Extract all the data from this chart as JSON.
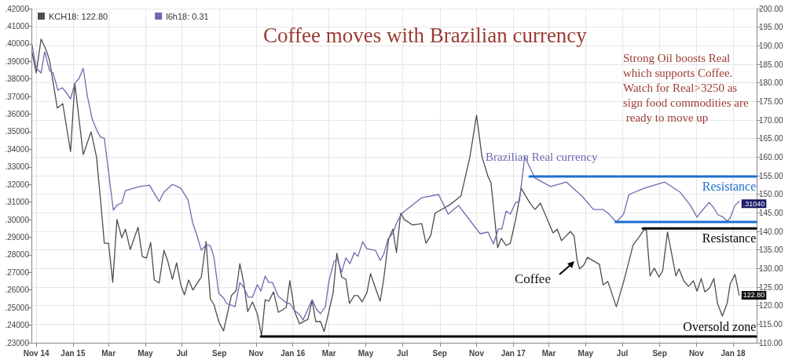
{
  "chart_data": {
    "type": "line",
    "title": "Coffee moves with Brazilian currency",
    "annotations": [
      "Strong Oil boosts Real which supports Coffee. Watch for Real>3250 as sign food commodities are ready to move up",
      "Brazilian Real currency",
      "Coffee"
    ],
    "xlim": [
      "2014-10-24",
      "2018-02-09"
    ],
    "xticks": [
      {
        "value": "2014-11-01",
        "label": "Nov 14"
      },
      {
        "value": "2015-01-01",
        "label": "Jan 15"
      },
      {
        "value": "2015-03-01",
        "label": "Mar"
      },
      {
        "value": "2015-05-01",
        "label": "May"
      },
      {
        "value": "2015-07-01",
        "label": "Jul"
      },
      {
        "value": "2015-09-01",
        "label": "Sep"
      },
      {
        "value": "2015-11-01",
        "label": "Nov"
      },
      {
        "value": "2016-01-01",
        "label": "Jan 16"
      },
      {
        "value": "2016-03-01",
        "label": "Mar"
      },
      {
        "value": "2016-05-01",
        "label": "May"
      },
      {
        "value": "2016-07-01",
        "label": "Jul"
      },
      {
        "value": "2016-09-01",
        "label": "Sep"
      },
      {
        "value": "2016-11-01",
        "label": "Nov"
      },
      {
        "value": "2017-01-01",
        "label": "Jan 17"
      },
      {
        "value": "2017-03-01",
        "label": "Mar"
      },
      {
        "value": "2017-05-01",
        "label": "May"
      },
      {
        "value": "2017-07-01",
        "label": "Jul"
      },
      {
        "value": "2017-09-01",
        "label": "Sep"
      },
      {
        "value": "2017-11-01",
        "label": "Nov"
      },
      {
        "value": "2018-01-01",
        "label": "Jan 18"
      }
    ],
    "ylim": [
      0.23,
      0.42
    ],
    "yticks": [
      {
        "value": 0.23,
        "label": ".23000"
      },
      {
        "value": 0.24,
        "label": ".24000"
      },
      {
        "value": 0.25,
        "label": ".25000"
      },
      {
        "value": 0.26,
        "label": ".26000"
      },
      {
        "value": 0.27,
        "label": ".27000"
      },
      {
        "value": 0.28,
        "label": ".28000"
      },
      {
        "value": 0.29,
        "label": ".29000"
      },
      {
        "value": 0.3,
        "label": ".30000"
      },
      {
        "value": 0.31,
        "label": ".31000"
      },
      {
        "value": 0.32,
        "label": ".32000"
      },
      {
        "value": 0.33,
        "label": ".33000"
      },
      {
        "value": 0.34,
        "label": ".34000"
      },
      {
        "value": 0.35,
        "label": ".35000"
      },
      {
        "value": 0.36,
        "label": ".36000"
      },
      {
        "value": 0.37,
        "label": ".37000"
      },
      {
        "value": 0.38,
        "label": ".38000"
      },
      {
        "value": 0.39,
        "label": ".39000"
      },
      {
        "value": 0.4,
        "label": ".40000"
      },
      {
        "value": 0.41,
        "label": ".41000"
      },
      {
        "value": 0.42,
        "label": ".42000"
      }
    ],
    "y2lim": [
      110,
      200
    ],
    "y2ticks": [
      {
        "value": 110,
        "label": "110.00"
      },
      {
        "value": 115,
        "label": "115.00"
      },
      {
        "value": 120,
        "label": "120.00"
      },
      {
        "value": 125,
        "label": "125.00"
      },
      {
        "value": 130,
        "label": "130.00"
      },
      {
        "value": 135,
        "label": "135.00"
      },
      {
        "value": 140,
        "label": "140.00"
      },
      {
        "value": 145,
        "label": "145.00"
      },
      {
        "value": 150,
        "label": "150.00"
      },
      {
        "value": 155,
        "label": "155.00"
      },
      {
        "value": 160,
        "label": "160.00"
      },
      {
        "value": 165,
        "label": "165.00"
      },
      {
        "value": 170,
        "label": "170.00"
      },
      {
        "value": 175,
        "label": "175.00"
      },
      {
        "value": 180,
        "label": "180.00"
      },
      {
        "value": 185,
        "label": "185.00"
      },
      {
        "value": 190,
        "label": "190.00"
      },
      {
        "value": 195,
        "label": "195.00"
      },
      {
        "value": 200,
        "label": "200.00"
      }
    ],
    "grid": true,
    "legend": "top left",
    "marker": "none",
    "series": [
      {
        "name": "KCH18: 122.80",
        "color": "#4d4d4d",
        "axis": "y2",
        "x": [
          "2014-10-25",
          "2014-11-01",
          "2014-11-09",
          "2014-11-17",
          "2014-11-23",
          "2014-12-06",
          "2014-12-15",
          "2014-12-28",
          "2015-01-04",
          "2015-01-18",
          "2015-01-31",
          "2015-02-09",
          "2015-02-16",
          "2015-02-22",
          "2015-03-01",
          "2015-03-08",
          "2015-03-15",
          "2015-03-23",
          "2015-03-29",
          "2015-04-06",
          "2015-04-19",
          "2015-04-26",
          "2015-05-03",
          "2015-05-10",
          "2015-05-16",
          "2015-05-24",
          "2015-06-01",
          "2015-06-07",
          "2015-06-15",
          "2015-06-22",
          "2015-06-29",
          "2015-07-05",
          "2015-07-12",
          "2015-07-19",
          "2015-08-02",
          "2015-08-10",
          "2015-08-17",
          "2015-08-23",
          "2015-08-31",
          "2015-09-08",
          "2015-09-21",
          "2015-09-29",
          "2015-10-05",
          "2015-10-12",
          "2015-10-18",
          "2015-10-26",
          "2015-11-03",
          "2015-11-10",
          "2015-11-16",
          "2015-11-22",
          "2015-11-30",
          "2015-12-08",
          "2015-12-21",
          "2015-12-27",
          "2016-01-04",
          "2016-01-12",
          "2016-01-26",
          "2016-02-02",
          "2016-02-08",
          "2016-02-16",
          "2016-02-22",
          "2016-03-08",
          "2016-03-14",
          "2016-03-22",
          "2016-03-29",
          "2016-04-04",
          "2016-04-12",
          "2016-04-18",
          "2016-04-25",
          "2016-05-03",
          "2016-05-09",
          "2016-05-17",
          "2016-05-25",
          "2016-05-31",
          "2016-06-08",
          "2016-06-15",
          "2016-06-21",
          "2016-06-28",
          "2016-07-04",
          "2016-07-18",
          "2016-08-02",
          "2016-08-09",
          "2016-08-17",
          "2016-08-24",
          "2016-09-16",
          "2016-10-06",
          "2016-10-21",
          "2016-11-01",
          "2016-11-10",
          "2016-11-20",
          "2016-11-25",
          "2016-12-06",
          "2016-12-12",
          "2016-12-20",
          "2016-12-27",
          "2017-01-05",
          "2017-01-14",
          "2017-01-28",
          "2017-02-06",
          "2017-02-15",
          "2017-03-04",
          "2017-03-08",
          "2017-03-15",
          "2017-03-22",
          "2017-04-06",
          "2017-04-12",
          "2017-04-17",
          "2017-04-21",
          "2017-04-28",
          "2017-05-04",
          "2017-05-24",
          "2017-05-30",
          "2017-06-07",
          "2017-06-21",
          "2017-07-03",
          "2017-07-19",
          "2017-07-28",
          "2017-08-06",
          "2017-08-10",
          "2017-08-16",
          "2017-08-23",
          "2017-08-31",
          "2017-09-06",
          "2017-09-14",
          "2017-09-28",
          "2017-10-03",
          "2017-10-11",
          "2017-10-19",
          "2017-10-27",
          "2017-11-02",
          "2017-11-09",
          "2017-11-15",
          "2017-11-23",
          "2017-11-30",
          "2017-12-06",
          "2017-12-14",
          "2017-12-22",
          "2017-12-27",
          "2018-01-04",
          "2018-01-11"
        ],
        "values": [
          188.2,
          182.7,
          191.8,
          189.0,
          186.1,
          173.2,
          174.4,
          161.5,
          179.9,
          160.7,
          166.8,
          160.1,
          148.0,
          136.8,
          136.8,
          126.3,
          143.2,
          138.3,
          140.6,
          135.1,
          141.1,
          133.2,
          132.8,
          137.0,
          126.9,
          126.1,
          134.9,
          132.2,
          127.1,
          131.5,
          125.6,
          122.9,
          126.9,
          124.2,
          127.7,
          137.3,
          121.8,
          120.3,
          115.7,
          113.2,
          122.7,
          124.1,
          131.3,
          125.6,
          118.4,
          121.0,
          117.8,
          111.9,
          121.6,
          121.2,
          123.7,
          118.2,
          119.5,
          126.7,
          118.4,
          115.1,
          116.3,
          121.4,
          115.7,
          115.7,
          113.0,
          123.5,
          134.1,
          127.7,
          127.1,
          120.6,
          122.7,
          122.7,
          121.0,
          123.5,
          128.6,
          124.8,
          121.2,
          127.3,
          137.9,
          140.6,
          134.3,
          144.9,
          143.2,
          141.7,
          142.1,
          136.8,
          138.9,
          144.9,
          147.0,
          149.5,
          160.1,
          171.3,
          160.1,
          154.8,
          153.1,
          135.6,
          138.1,
          136.2,
          136.8,
          143.2,
          151.6,
          147.8,
          145.9,
          147.6,
          141.1,
          139.6,
          140.6,
          137.5,
          140.0,
          138.7,
          132.2,
          129.9,
          130.9,
          133.0,
          131.1,
          125.6,
          126.5,
          119.7,
          126.3,
          136.4,
          138.3,
          140.4,
          140.4,
          128.0,
          130.1,
          127.7,
          129.4,
          139.8,
          128.0,
          129.9,
          126.7,
          125.2,
          126.7,
          123.9,
          127.3,
          123.7,
          124.8,
          127.3,
          120.6,
          117.2,
          120.6,
          125.8,
          128.4,
          122.8
        ],
        "value_labels": [
          null,
          null,
          null,
          null,
          null,
          null,
          null,
          null,
          null,
          null,
          null,
          null,
          null,
          null,
          null,
          null,
          null,
          null,
          null,
          null,
          null,
          null,
          null,
          null,
          null,
          null,
          null,
          null,
          null,
          null,
          null,
          null,
          null,
          null,
          null,
          null,
          null,
          null,
          null,
          null,
          null,
          null,
          null,
          null,
          null,
          null,
          null,
          null,
          null,
          null,
          null,
          null,
          null,
          null,
          null,
          null,
          null,
          null,
          null,
          null,
          null,
          null,
          null,
          null,
          null,
          null,
          null,
          null,
          null,
          null,
          null,
          null,
          null,
          null,
          null,
          null,
          null,
          null,
          null,
          null,
          null,
          null,
          null,
          null,
          null,
          null,
          null,
          null,
          null,
          null,
          null,
          null,
          null,
          null,
          null,
          null,
          null,
          null,
          null,
          null,
          null,
          null,
          null,
          null,
          null,
          null,
          null,
          null,
          null,
          null,
          null,
          null,
          null,
          null,
          null,
          null,
          null,
          null,
          null,
          null,
          null,
          null,
          null,
          null,
          null,
          null,
          null,
          null,
          null,
          null,
          null,
          null,
          null,
          null,
          null,
          null,
          null,
          null,
          null,
          "122.80"
        ]
      },
      {
        "name": "l6h18: 0.31",
        "color": "#6b6bb0",
        "axis": "y",
        "x": [
          "2014-10-25",
          "2014-11-01",
          "2014-11-09",
          "2014-11-15",
          "2014-11-23",
          "2014-11-29",
          "2014-12-07",
          "2014-12-14",
          "2014-12-20",
          "2014-12-28",
          "2015-01-04",
          "2015-01-11",
          "2015-01-18",
          "2015-01-25",
          "2015-02-02",
          "2015-02-10",
          "2015-02-16",
          "2015-02-22",
          "2015-03-09",
          "2015-03-16",
          "2015-03-23",
          "2015-03-29",
          "2015-04-21",
          "2015-05-08",
          "2015-05-24",
          "2015-06-01",
          "2015-06-15",
          "2015-06-29",
          "2015-07-11",
          "2015-07-19",
          "2015-07-25",
          "2015-08-02",
          "2015-08-10",
          "2015-08-17",
          "2015-08-23",
          "2015-08-31",
          "2015-09-08",
          "2015-09-13",
          "2015-09-21",
          "2015-09-27",
          "2015-10-05",
          "2015-10-12",
          "2015-10-19",
          "2015-10-26",
          "2015-11-03",
          "2015-11-09",
          "2015-11-16",
          "2015-11-22",
          "2015-11-28",
          "2015-12-08",
          "2015-12-21",
          "2015-12-27",
          "2016-01-04",
          "2016-01-12",
          "2016-01-18",
          "2016-02-02",
          "2016-02-09",
          "2016-02-16",
          "2016-02-24",
          "2016-03-01",
          "2016-03-09",
          "2016-03-15",
          "2016-03-22",
          "2016-03-29",
          "2016-04-05",
          "2016-04-12",
          "2016-04-18",
          "2016-04-26",
          "2016-05-03",
          "2016-05-17",
          "2016-05-25",
          "2016-05-31",
          "2016-06-07",
          "2016-06-15",
          "2016-06-21",
          "2016-06-30",
          "2016-08-02",
          "2016-08-30",
          "2016-09-15",
          "2016-10-02",
          "2016-10-25",
          "2016-11-07",
          "2016-11-20",
          "2016-11-29",
          "2016-12-07",
          "2016-12-13",
          "2016-12-20",
          "2016-12-27",
          "2017-01-05",
          "2017-01-11",
          "2017-01-20",
          "2017-02-06",
          "2017-03-04",
          "2017-03-30",
          "2017-04-25",
          "2017-05-14",
          "2017-05-30",
          "2017-06-09",
          "2017-06-21",
          "2017-07-03",
          "2017-07-12",
          "2017-08-07",
          "2017-09-09",
          "2017-10-05",
          "2017-10-22",
          "2017-11-02",
          "2017-11-09",
          "2017-11-22",
          "2017-11-30",
          "2017-12-07",
          "2017-12-14",
          "2017-12-22",
          "2017-12-27",
          "2018-01-04",
          "2018-01-11"
        ],
        "values": [
          0.3995,
          0.3861,
          0.3834,
          0.3955,
          0.3848,
          0.3834,
          0.3736,
          0.375,
          0.3727,
          0.3687,
          0.3776,
          0.3803,
          0.3861,
          0.37,
          0.3571,
          0.3504,
          0.3469,
          0.3464,
          0.3054,
          0.3085,
          0.3094,
          0.3165,
          0.3188,
          0.3196,
          0.3103,
          0.3156,
          0.3201,
          0.3179,
          0.3112,
          0.2978,
          0.292,
          0.2826,
          0.2858,
          0.2853,
          0.2786,
          0.2581,
          0.2554,
          0.2523,
          0.2514,
          0.2505,
          0.2643,
          0.2612,
          0.2559,
          0.2559,
          0.263,
          0.2594,
          0.2679,
          0.2643,
          0.2643,
          0.2563,
          0.2527,
          0.2523,
          0.2483,
          0.2461,
          0.2429,
          0.2545,
          0.2492,
          0.2465,
          0.2505,
          0.2652,
          0.2759,
          0.2777,
          0.2701,
          0.2782,
          0.275,
          0.2813,
          0.2791,
          0.2875,
          0.2835,
          0.2826,
          0.2768,
          0.2804,
          0.2889,
          0.2924,
          0.2978,
          0.3036,
          0.3125,
          0.3143,
          0.3031,
          0.3081,
          0.2978,
          0.292,
          0.2929,
          0.2862,
          0.2947,
          0.2947,
          0.3049,
          0.3031,
          0.3098,
          0.3103,
          0.3357,
          0.3237,
          0.3188,
          0.3214,
          0.3134,
          0.3058,
          0.3058,
          0.3031,
          0.2987,
          0.3031,
          0.3143,
          0.3179,
          0.3214,
          0.3156,
          0.3081,
          0.3014,
          0.3045,
          0.3098,
          0.3067,
          0.3027,
          0.3018,
          0.2991,
          0.3009,
          0.3081,
          0.3104
        ],
        "value_labels": [
          null,
          null,
          null,
          null,
          null,
          null,
          null,
          null,
          null,
          null,
          null,
          null,
          null,
          null,
          null,
          null,
          null,
          null,
          null,
          null,
          null,
          null,
          null,
          null,
          null,
          null,
          null,
          null,
          null,
          null,
          null,
          null,
          null,
          null,
          null,
          null,
          null,
          null,
          null,
          null,
          null,
          null,
          null,
          null,
          null,
          null,
          null,
          null,
          null,
          null,
          null,
          null,
          null,
          null,
          null,
          null,
          null,
          null,
          null,
          null,
          null,
          null,
          null,
          null,
          null,
          null,
          null,
          null,
          null,
          null,
          null,
          null,
          null,
          null,
          null,
          null,
          null,
          null,
          null,
          null,
          null,
          null,
          null,
          null,
          null,
          null,
          null,
          null,
          null,
          null,
          null,
          null,
          null,
          null,
          null,
          null,
          null,
          null,
          null,
          null,
          null,
          null,
          null,
          null,
          null,
          null,
          null,
          null,
          null,
          null,
          null,
          null,
          null,
          null,
          ".31040"
        ]
      },
      {
        "name": "Resistance",
        "color": "#1f6fd0",
        "axis": "y",
        "x": [
          "2017-01-28",
          "2018-02-08"
        ],
        "values": [
          0.3245,
          0.3245
        ]
      },
      {
        "color": "#1f6fd0",
        "axis": "y",
        "x": [
          "2017-06-20",
          "2018-02-08"
        ],
        "values": [
          0.2987,
          0.2987
        ]
      },
      {
        "name": "Resistance",
        "color": "#000000",
        "axis": "y2",
        "x": [
          "2017-08-04",
          "2018-02-08"
        ],
        "values": [
          140.8,
          140.8
        ]
      },
      {
        "name": "Oversold zone",
        "color": "#000000",
        "axis": "y2",
        "x": [
          "2015-11-09",
          "2018-02-08"
        ],
        "values": [
          111.7,
          111.7
        ]
      }
    ]
  }
}
